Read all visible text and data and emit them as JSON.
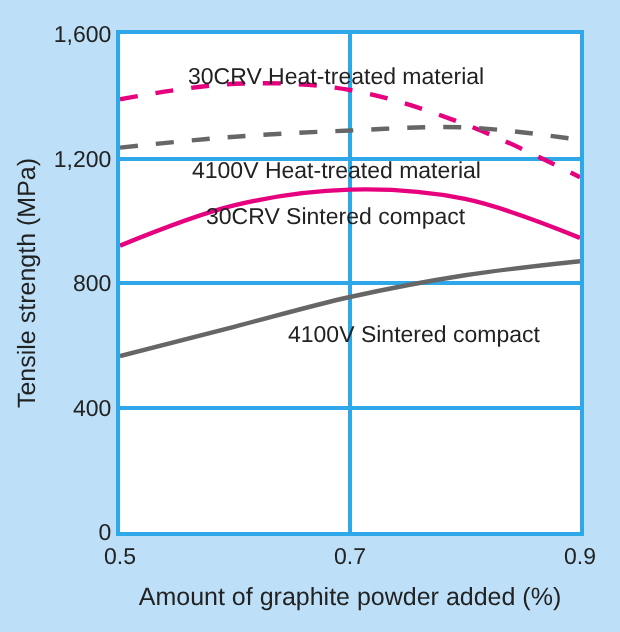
{
  "chart_data": {
    "type": "line",
    "xlabel": "Amount of graphite powder added (%)",
    "ylabel": "Tensile strength (MPa)",
    "x": [
      0.5,
      0.6,
      0.7,
      0.8,
      0.9
    ],
    "series": [
      {
        "name": "30CRV Heat-treated material",
        "color": "#e6007e",
        "line_style": "dashed",
        "values": [
          1390,
          1440,
          1420,
          1310,
          1140
        ]
      },
      {
        "name": "4100V Heat-treated material",
        "color": "#666666",
        "line_style": "dashed",
        "values": [
          1235,
          1270,
          1290,
          1300,
          1260
        ]
      },
      {
        "name": "30CRV Sintered compact",
        "color": "#e6007e",
        "line_style": "solid",
        "values": [
          920,
          1050,
          1100,
          1070,
          945
        ]
      },
      {
        "name": "4100V Sintered compact",
        "color": "#666666",
        "line_style": "solid",
        "values": [
          565,
          660,
          755,
          825,
          870
        ]
      }
    ],
    "xlim": [
      0.5,
      0.9
    ],
    "ylim": [
      0,
      1600
    ],
    "xticks": [
      0.5,
      0.7,
      0.9
    ],
    "yticks": [
      0,
      400,
      800,
      {
        "value": 1200,
        "label": "1,200"
      },
      {
        "value": 1600,
        "label": "1,600"
      }
    ],
    "grid": true,
    "legend": false,
    "marker": "none"
  }
}
